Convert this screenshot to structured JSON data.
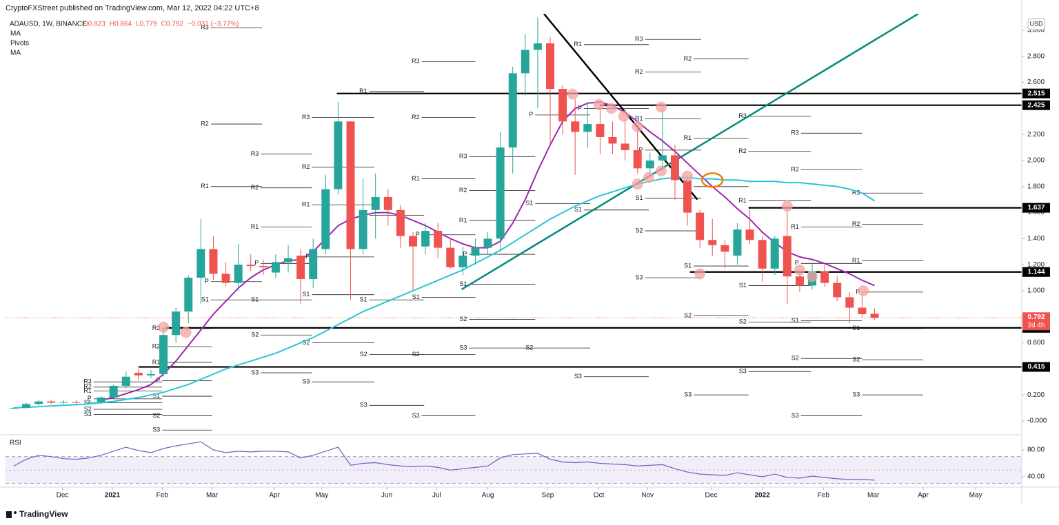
{
  "chart_data": {
    "type": "candlestick",
    "published": "CryptoFXStreet published on TradingView.com, Mar 12, 2022 04:22 UTC+8",
    "header": {
      "symbol": "ADAUSD, 1W, BINANCE",
      "ohlc": [
        "O0.823",
        "H0.864",
        "L0.779",
        "C0.792",
        "−0.031 (−3.77%)"
      ]
    },
    "currency": "USD",
    "countdown": "2d 4h",
    "footer": "TradingView",
    "up_color": "#26a69a",
    "down_color": "#ef5350",
    "xlim": [
      -0.66,
      80.8
    ],
    "ylim": [
      -0.09,
      3.127
    ],
    "xticks": [
      {
        "value": 3.9,
        "label": "Dec"
      },
      {
        "value": 7.9,
        "label": "2021"
      },
      {
        "value": 11.9,
        "label": "Feb"
      },
      {
        "value": 15.9,
        "label": "Mar"
      },
      {
        "value": 20.9,
        "label": "Apr"
      },
      {
        "value": 24.7,
        "label": "May"
      },
      {
        "value": 29.9,
        "label": "Jun"
      },
      {
        "value": 33.9,
        "label": "Jul"
      },
      {
        "value": 38.0,
        "label": "Aug"
      },
      {
        "value": 42.8,
        "label": "Sep"
      },
      {
        "value": 46.9,
        "label": "Oct"
      },
      {
        "value": 50.8,
        "label": "Nov"
      },
      {
        "value": 55.9,
        "label": "Dec"
      },
      {
        "value": 60.0,
        "label": "2022"
      },
      {
        "value": 64.9,
        "label": "Feb"
      },
      {
        "value": 68.9,
        "label": "Mar"
      },
      {
        "value": 72.9,
        "label": "Apr"
      },
      {
        "value": 77.1,
        "label": "May"
      }
    ],
    "yticks": [
      {
        "value": 3,
        "label": "3.000"
      },
      {
        "value": 2.8,
        "label": "2.800"
      },
      {
        "value": 2.6,
        "label": "2.600"
      },
      {
        "value": 2.2,
        "label": "2.200"
      },
      {
        "value": 2,
        "label": "2.000"
      },
      {
        "value": 1.8,
        "label": "1.800"
      },
      {
        "value": 1.6,
        "label": "1.600"
      },
      {
        "value": 1.4,
        "label": "1.400"
      },
      {
        "value": 1.2,
        "label": "1.200"
      },
      {
        "value": 1,
        "label": "1.000"
      },
      {
        "value": 0.6,
        "label": "0.600"
      },
      {
        "value": 0.2,
        "label": "0.200"
      },
      {
        "value": 0,
        "label": "-0.000"
      }
    ],
    "x": [
      0,
      1,
      2,
      3,
      4,
      5,
      6,
      7,
      8,
      9,
      10,
      11,
      12,
      13,
      14,
      15,
      16,
      17,
      18,
      19,
      20,
      21,
      22,
      23,
      24,
      25,
      26,
      27,
      28,
      29,
      30,
      31,
      32,
      33,
      34,
      35,
      36,
      37,
      38,
      39,
      40,
      41,
      42,
      43,
      44,
      45,
      46,
      47,
      48,
      49,
      50,
      51,
      52,
      53,
      54,
      55,
      56,
      57,
      58,
      59,
      60,
      61,
      62,
      63,
      64,
      65,
      66,
      67,
      68,
      69
    ],
    "candles": [
      [
        0.095,
        0.105,
        0.09,
        0.1
      ],
      [
        0.1,
        0.14,
        0.095,
        0.13
      ],
      [
        0.13,
        0.16,
        0.12,
        0.15
      ],
      [
        0.15,
        0.16,
        0.13,
        0.14
      ],
      [
        0.14,
        0.16,
        0.13,
        0.145
      ],
      [
        0.145,
        0.16,
        0.13,
        0.14
      ],
      [
        0.14,
        0.15,
        0.13,
        0.145
      ],
      [
        0.145,
        0.19,
        0.13,
        0.18
      ],
      [
        0.18,
        0.28,
        0.17,
        0.27
      ],
      [
        0.27,
        0.38,
        0.25,
        0.34
      ],
      [
        0.37,
        0.4,
        0.31,
        0.35
      ],
      [
        0.35,
        0.39,
        0.33,
        0.36
      ],
      [
        0.36,
        0.72,
        0.34,
        0.66
      ],
      [
        0.66,
        0.87,
        0.6,
        0.84
      ],
      [
        0.84,
        1.12,
        0.75,
        1.1
      ],
      [
        1.1,
        1.55,
        0.9,
        1.32
      ],
      [
        1.32,
        1.42,
        1.08,
        1.13
      ],
      [
        1.13,
        1.22,
        1.03,
        1.06
      ],
      [
        1.06,
        1.36,
        1.0,
        1.2
      ],
      [
        1.2,
        1.28,
        1.15,
        1.19
      ],
      [
        1.19,
        1.24,
        1.12,
        1.18
      ],
      [
        1.14,
        1.28,
        1.1,
        1.22
      ],
      [
        1.22,
        1.35,
        1.14,
        1.25
      ],
      [
        1.27,
        1.32,
        0.9,
        1.09
      ],
      [
        1.09,
        1.4,
        1.02,
        1.32
      ],
      [
        1.32,
        1.89,
        1.28,
        1.78
      ],
      [
        1.78,
        2.45,
        1.74,
        2.3
      ],
      [
        2.3,
        2.3,
        0.93,
        1.32
      ],
      [
        1.32,
        1.86,
        1.28,
        1.62
      ],
      [
        1.62,
        1.9,
        1.4,
        1.72
      ],
      [
        1.72,
        1.78,
        1.5,
        1.62
      ],
      [
        1.62,
        1.66,
        1.33,
        1.42
      ],
      [
        1.42,
        1.45,
        1.0,
        1.34
      ],
      [
        1.34,
        1.52,
        1.28,
        1.46
      ],
      [
        1.46,
        1.52,
        1.25,
        1.33
      ],
      [
        1.33,
        1.4,
        1.17,
        1.18
      ],
      [
        1.18,
        1.34,
        1.12,
        1.27
      ],
      [
        1.27,
        1.4,
        1.2,
        1.33
      ],
      [
        1.33,
        1.45,
        1.28,
        1.4
      ],
      [
        1.4,
        2.22,
        1.3,
        2.1
      ],
      [
        2.1,
        2.72,
        1.9,
        2.67
      ],
      [
        2.67,
        2.97,
        2.5,
        2.85
      ],
      [
        2.85,
        3.1,
        2.4,
        2.9
      ],
      [
        2.9,
        2.95,
        2.12,
        2.55
      ],
      [
        2.55,
        2.58,
        2.2,
        2.3
      ],
      [
        2.3,
        2.47,
        1.89,
        2.22
      ],
      [
        2.22,
        2.45,
        2.1,
        2.28
      ],
      [
        2.28,
        2.42,
        2.05,
        2.18
      ],
      [
        2.18,
        2.3,
        2.05,
        2.13
      ],
      [
        2.13,
        2.32,
        2.0,
        2.08
      ],
      [
        2.08,
        2.25,
        1.9,
        1.94
      ],
      [
        1.94,
        2.06,
        1.88,
        2.0
      ],
      [
        2.0,
        2.4,
        1.92,
        2.04
      ],
      [
        2.04,
        2.12,
        1.7,
        1.85
      ],
      [
        1.85,
        1.88,
        1.5,
        1.6
      ],
      [
        1.6,
        1.62,
        1.33,
        1.39
      ],
      [
        1.39,
        1.55,
        1.27,
        1.35
      ],
      [
        1.35,
        1.39,
        1.17,
        1.3
      ],
      [
        1.27,
        1.52,
        1.2,
        1.47
      ],
      [
        1.47,
        1.63,
        1.36,
        1.39
      ],
      [
        1.39,
        1.42,
        1.07,
        1.17
      ],
      [
        1.17,
        1.42,
        1.12,
        1.4
      ],
      [
        1.42,
        1.65,
        0.9,
        1.11
      ],
      [
        1.11,
        1.13,
        0.99,
        1.04
      ],
      [
        1.04,
        1.22,
        1.01,
        1.15
      ],
      [
        1.15,
        1.2,
        1.03,
        1.06
      ],
      [
        1.06,
        1.11,
        0.92,
        0.95
      ],
      [
        0.95,
        0.99,
        0.75,
        0.87
      ],
      [
        0.87,
        0.98,
        0.79,
        0.82
      ],
      [
        0.823,
        0.864,
        0.779,
        0.792
      ]
    ],
    "series": [
      {
        "name": "MA",
        "color": "#9c27b0",
        "values": [
          null,
          null,
          null,
          null,
          null,
          null,
          null,
          0.16,
          0.18,
          0.21,
          0.24,
          0.28,
          0.36,
          0.46,
          0.58,
          0.7,
          0.82,
          0.92,
          1.02,
          1.1,
          1.16,
          1.2,
          1.23,
          1.24,
          1.3,
          1.4,
          1.5,
          1.55,
          1.58,
          1.6,
          1.6,
          1.58,
          1.54,
          1.5,
          1.45,
          1.4,
          1.36,
          1.33,
          1.33,
          1.38,
          1.52,
          1.7,
          1.92,
          2.12,
          2.3,
          2.4,
          2.44,
          2.45,
          2.42,
          2.37,
          2.3,
          2.22,
          2.15,
          2.07,
          1.98,
          1.89,
          1.8,
          1.72,
          1.63,
          1.55,
          1.45,
          1.37,
          1.3,
          1.26,
          1.24,
          1.21,
          1.17,
          1.13,
          1.08,
          1.04
        ]
      },
      {
        "name": "MA",
        "color": "#26c6da",
        "values": [
          0.1,
          0.105,
          0.11,
          0.115,
          0.12,
          0.125,
          0.13,
          0.14,
          0.15,
          0.165,
          0.18,
          0.2,
          0.22,
          0.25,
          0.28,
          0.32,
          0.36,
          0.4,
          0.43,
          0.46,
          0.49,
          0.52,
          0.56,
          0.6,
          0.64,
          0.69,
          0.74,
          0.79,
          0.84,
          0.88,
          0.92,
          0.96,
          1.0,
          1.04,
          1.08,
          1.12,
          1.16,
          1.21,
          1.26,
          1.31,
          1.37,
          1.43,
          1.49,
          1.55,
          1.6,
          1.65,
          1.69,
          1.73,
          1.76,
          1.79,
          1.82,
          1.84,
          1.86,
          1.87,
          1.87,
          1.86,
          1.86,
          1.85,
          1.85,
          1.84,
          1.84,
          1.84,
          1.83,
          1.83,
          1.82,
          1.81,
          1.8,
          1.78,
          1.75,
          1.69
        ]
      }
    ],
    "pivots": {
      "name": "Pivots",
      "color": "#222222",
      "labels": [
        "R3",
        "R2",
        "R1",
        "P",
        "S1",
        "S2",
        "S3"
      ],
      "sets": [
        {
          "start": 6.4,
          "end": 11.9,
          "values": [
            0.3,
            0.26,
            0.23,
            0.17,
            0.14,
            0.09,
            0.05
          ]
        },
        {
          "start": 11.9,
          "end": 15.9,
          "values": [
            0.71,
            0.57,
            0.45,
            0.31,
            0.19,
            0.04,
            -0.07
          ]
        },
        {
          "start": 15.8,
          "end": 19.9,
          "values": [
            3.02,
            2.28,
            1.8,
            1.07,
            0.93,
            null,
            null
          ]
        },
        {
          "start": 19.8,
          "end": 23.9,
          "values": [
            2.05,
            1.79,
            1.49,
            1.21,
            0.93,
            0.66,
            0.37
          ]
        },
        {
          "start": 23.9,
          "end": 28.9,
          "values": [
            2.33,
            1.95,
            1.66,
            1.26,
            0.97,
            0.6,
            0.3
          ]
        },
        {
          "start": 28.5,
          "end": 32.9,
          "values": [
            null,
            null,
            2.53,
            1.58,
            0.93,
            0.51,
            0.12
          ]
        },
        {
          "start": 32.7,
          "end": 37.0,
          "values": [
            2.76,
            2.33,
            1.86,
            1.43,
            0.95,
            0.51,
            0.04
          ]
        },
        {
          "start": 36.5,
          "end": 41.8,
          "values": [
            2.03,
            1.77,
            1.54,
            1.28,
            1.05,
            0.78,
            0.56
          ]
        },
        {
          "start": 41.8,
          "end": 46.2,
          "values": [
            null,
            null,
            null,
            2.35,
            1.67,
            0.56,
            null
          ]
        },
        {
          "start": 45.7,
          "end": 50.9,
          "values": [
            null,
            null,
            2.89,
            2.4,
            1.62,
            null,
            0.34
          ]
        },
        {
          "start": 50.6,
          "end": 55.1,
          "values": [
            2.93,
            2.68,
            2.32,
            2.08,
            1.71,
            1.46,
            1.1
          ]
        },
        {
          "start": 54.5,
          "end": 58.9,
          "values": [
            null,
            2.78,
            2.17,
            1.8,
            1.19,
            0.81,
            0.2
          ]
        },
        {
          "start": 58.9,
          "end": 63.9,
          "values": [
            2.34,
            2.07,
            1.69,
            null,
            1.04,
            0.76,
            0.38
          ]
        },
        {
          "start": 63.1,
          "end": 68.0,
          "values": [
            2.21,
            1.93,
            1.49,
            1.21,
            0.77,
            0.48,
            0.04
          ]
        },
        {
          "start": 68.0,
          "end": 72.9,
          "values": [
            1.75,
            1.51,
            1.23,
            0.99,
            0.71,
            0.47,
            0.2
          ]
        }
      ]
    },
    "levels": [
      {
        "value": 2.515,
        "start": 25.9
      },
      {
        "value": 2.425,
        "start": 47.0
      },
      {
        "value": 1.637,
        "start": 58.9
      },
      {
        "value": 1.144,
        "start": 54.2
      },
      {
        "value": 0.715,
        "start": 12.2
      },
      {
        "value": 0.415,
        "start": 10.0
      }
    ],
    "trendlines": [
      {
        "color": "#000000",
        "points": [
          [
            42.5,
            3.127
          ],
          [
            54.8,
            1.7
          ]
        ]
      },
      {
        "color": "#00897b",
        "points": [
          [
            35.9,
            1.01
          ],
          [
            72.5,
            3.127
          ]
        ]
      }
    ],
    "markers": {
      "color": "#f4a0a0",
      "points": [
        [
          12.0,
          0.72
        ],
        [
          13.8,
          0.68
        ],
        [
          44.8,
          2.51
        ],
        [
          46.9,
          2.43
        ],
        [
          47.9,
          2.4
        ],
        [
          48.9,
          2.34
        ],
        [
          50.0,
          2.26
        ],
        [
          50.0,
          1.82
        ],
        [
          50.9,
          1.87
        ],
        [
          51.9,
          1.92
        ],
        [
          51.9,
          2.41
        ],
        [
          54.0,
          1.88
        ],
        [
          55.0,
          1.13
        ],
        [
          62.0,
          1.65
        ],
        [
          63.0,
          1.16
        ],
        [
          64.0,
          1.11
        ],
        [
          68.1,
          1.0
        ]
      ]
    },
    "highlight": {
      "color": "#f57c00",
      "point": [
        56.0,
        1.85
      ]
    },
    "rsi": {
      "name": "RSI",
      "color": "#7e57c2",
      "ylim": [
        23.6,
        100.5
      ],
      "yticks": [
        {
          "value": 80,
          "label": "80.00"
        },
        {
          "value": 40,
          "label": "40.00"
        }
      ],
      "band": [
        30,
        70
      ],
      "mid": 50,
      "values": [
        56,
        66,
        72,
        70,
        67,
        66,
        68,
        72,
        78,
        84,
        79,
        76,
        82,
        86,
        89,
        92,
        80,
        76,
        78,
        77,
        78,
        78,
        77,
        68,
        72,
        78,
        84,
        57,
        60,
        61,
        58,
        56,
        55,
        56,
        54,
        50,
        52,
        54,
        56,
        68,
        73,
        74,
        75,
        66,
        62,
        61,
        62,
        60,
        59,
        58,
        56,
        57,
        58,
        52,
        47,
        44,
        43,
        42,
        46,
        43,
        40,
        44,
        39,
        38,
        41,
        39,
        37,
        36,
        36,
        35
      ]
    }
  }
}
